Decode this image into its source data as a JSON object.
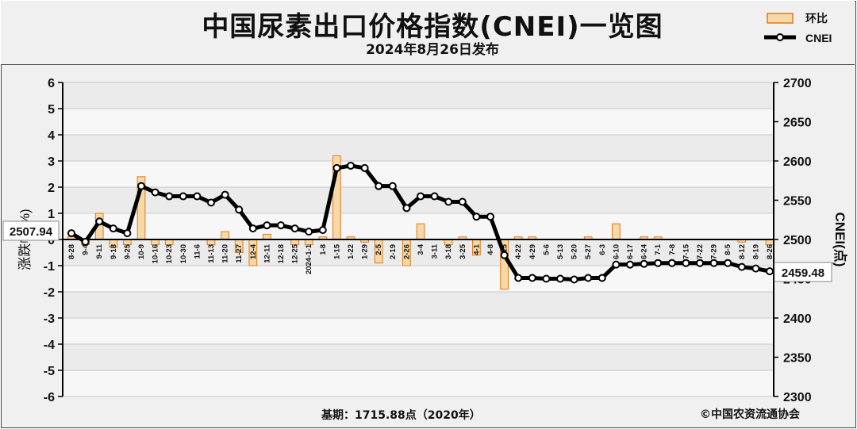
{
  "title": "中国尿素出口价格指数(CNEI)一览图",
  "subtitle": "2024年8月26日发布",
  "footer": {
    "base": "基期：1715.88点（2020年）",
    "copyright": "©中国农资流通协会"
  },
  "colors": {
    "bar_fill": "#f7d9a8",
    "bar_stroke": "#e07a1a",
    "line": "#000000",
    "marker_fill": "#ffffff",
    "plot_bg": "#ffffff",
    "grid": "#c8c8c8"
  },
  "chart_data": {
    "type": "bar+line",
    "categories": [
      "8-28",
      "9-4",
      "9-11",
      "9-18",
      "9-25",
      "10-9",
      "10-16",
      "10-23",
      "10-30",
      "11-6",
      "11-13",
      "11-20",
      "11-27",
      "12-4",
      "12-11",
      "12-18",
      "12-25",
      "2024-1-1",
      "1-8",
      "1-15",
      "1-22",
      "1-29",
      "2-5",
      "2-19",
      "2-26",
      "3-4",
      "3-11",
      "3-18",
      "3-25",
      "4-1",
      "4-8",
      "4-15",
      "4-22",
      "4-29",
      "5-6",
      "5-13",
      "5-20",
      "5-27",
      "6-3",
      "6-10",
      "6-17",
      "6-24",
      "7-1",
      "7-8",
      "7-15",
      "7-22",
      "7-29",
      "8-5",
      "8-12",
      "8-19",
      "8-26"
    ],
    "series": [
      {
        "name": "环比",
        "type": "bar",
        "axis": "left",
        "values": [
          0.1,
          -0.2,
          1.0,
          -0.3,
          -0.2,
          2.4,
          -0.2,
          -0.2,
          0.0,
          0.0,
          -0.2,
          0.3,
          -0.5,
          -1.0,
          0.2,
          0.0,
          -0.2,
          -0.2,
          0.1,
          3.2,
          0.1,
          -0.1,
          -0.9,
          0.0,
          -1.0,
          0.6,
          0.0,
          -0.2,
          0.1,
          -0.6,
          0.0,
          -1.9,
          0.1,
          0.1,
          0.0,
          0.0,
          0.0,
          0.1,
          0.0,
          0.6,
          0.0,
          0.1,
          0.1,
          0.0,
          0.0,
          0.0,
          0.0,
          0.0,
          -0.1,
          0.0,
          -0.2
        ]
      },
      {
        "name": "CNEI",
        "type": "line",
        "axis": "right",
        "values": [
          2507.94,
          2497,
          2523,
          2514,
          2508,
          2568,
          2560,
          2555,
          2555,
          2555,
          2547,
          2557,
          2538,
          2514,
          2518,
          2518,
          2514,
          2510,
          2512,
          2591,
          2594,
          2591,
          2568,
          2568,
          2540,
          2555,
          2555,
          2548,
          2548,
          2529,
          2529,
          2480,
          2451,
          2451,
          2450,
          2450,
          2449,
          2451,
          2451,
          2468,
          2468,
          2469,
          2470,
          2470,
          2470,
          2470,
          2470,
          2470,
          2465,
          2463,
          2459.48
        ]
      }
    ],
    "y_left": {
      "label": "涨跌幅(%)",
      "min": -6,
      "max": 6,
      "ticks": [
        -6,
        -5,
        -4,
        -3,
        -2,
        -1,
        0,
        1,
        2,
        3,
        4,
        5,
        6
      ]
    },
    "y_right": {
      "label": "CNEI(点)",
      "min": 2300,
      "max": 2700,
      "ticks": [
        2300,
        2350,
        2400,
        2450,
        2500,
        2550,
        2600,
        2650,
        2700
      ]
    },
    "annotations": {
      "start_value": "2507.94",
      "end_value": "2459.48"
    },
    "legend": {
      "position": "top-right"
    },
    "grid": true
  }
}
